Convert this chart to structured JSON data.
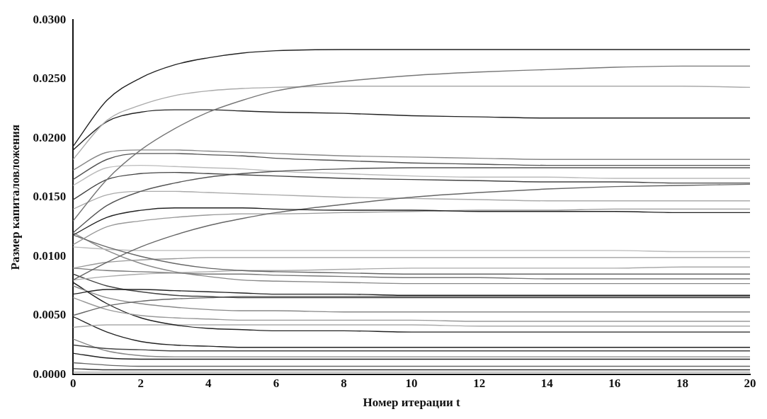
{
  "chart_data": {
    "type": "line",
    "xlabel": "Номер итерации t",
    "ylabel": "Размер капиталовложения",
    "x": [
      0,
      1,
      2,
      3,
      4,
      5,
      6,
      8,
      10,
      12,
      14,
      16,
      18,
      20
    ],
    "xlim": [
      0,
      20
    ],
    "xticks": [
      0,
      2,
      4,
      6,
      8,
      10,
      12,
      14,
      16,
      18,
      20
    ],
    "ylim": [
      0,
      0.03
    ],
    "yticks": [
      {
        "value": 0,
        "label": "0.0000"
      },
      {
        "value": 0.005,
        "label": "0.0050"
      },
      {
        "value": 0.01,
        "label": "0.0100"
      },
      {
        "value": 0.015,
        "label": "0.0150"
      },
      {
        "value": 0.02,
        "label": "0.0200"
      },
      {
        "value": 0.025,
        "label": "0.0250"
      },
      {
        "value": 0.03,
        "label": "0.0300"
      }
    ],
    "grid": false,
    "legend": false,
    "marker": "none",
    "line_style": "solid",
    "series": [
      {
        "color": "#222222",
        "values": [
          0.0193,
          0.0232,
          0.0251,
          0.0262,
          0.0268,
          0.0272,
          0.0274,
          0.0275,
          0.0275,
          0.0275,
          0.0275,
          0.0275,
          0.0275,
          0.0275
        ]
      },
      {
        "color": "#777777",
        "values": [
          0.013,
          0.0165,
          0.019,
          0.0208,
          0.0222,
          0.0232,
          0.024,
          0.0248,
          0.0253,
          0.0256,
          0.0258,
          0.026,
          0.0261,
          0.0261
        ]
      },
      {
        "color": "#aaaaaa",
        "values": [
          0.0182,
          0.0215,
          0.0228,
          0.0236,
          0.024,
          0.0242,
          0.0243,
          0.0244,
          0.0244,
          0.0244,
          0.0244,
          0.0244,
          0.0244,
          0.0243
        ]
      },
      {
        "color": "#222222",
        "values": [
          0.019,
          0.0214,
          0.0222,
          0.0224,
          0.0224,
          0.0223,
          0.0222,
          0.0221,
          0.0219,
          0.0218,
          0.0217,
          0.0217,
          0.0217,
          0.0217
        ]
      },
      {
        "color": "#888888",
        "values": [
          0.0173,
          0.0188,
          0.019,
          0.019,
          0.0189,
          0.0188,
          0.0187,
          0.0185,
          0.0184,
          0.0183,
          0.0182,
          0.0182,
          0.0182,
          0.0182
        ]
      },
      {
        "color": "#555555",
        "values": [
          0.0165,
          0.0182,
          0.0187,
          0.0187,
          0.0186,
          0.0185,
          0.0183,
          0.0181,
          0.0179,
          0.0178,
          0.0177,
          0.0177,
          0.0177,
          0.0177
        ]
      },
      {
        "color": "#444444",
        "values": [
          0.0148,
          0.0165,
          0.017,
          0.0171,
          0.017,
          0.0169,
          0.0168,
          0.0166,
          0.0165,
          0.0164,
          0.0163,
          0.0163,
          0.0162,
          0.0162
        ]
      },
      {
        "color": "#555555",
        "values": [
          0.012,
          0.0143,
          0.0155,
          0.0162,
          0.0167,
          0.017,
          0.0172,
          0.0174,
          0.0175,
          0.0175,
          0.0175,
          0.0175,
          0.0175,
          0.0175
        ]
      },
      {
        "color": "#222222",
        "values": [
          0.0118,
          0.0133,
          0.0139,
          0.0141,
          0.0141,
          0.0141,
          0.014,
          0.0139,
          0.0139,
          0.0138,
          0.0138,
          0.0138,
          0.0137,
          0.0137
        ]
      },
      {
        "color": "#666666",
        "values": [
          0.008,
          0.0095,
          0.0108,
          0.0118,
          0.0126,
          0.0132,
          0.0137,
          0.0144,
          0.015,
          0.0154,
          0.0157,
          0.0159,
          0.016,
          0.0161
        ]
      },
      {
        "color": "#bbbbbb",
        "values": [
          0.016,
          0.0175,
          0.0177,
          0.0176,
          0.0175,
          0.0174,
          0.0172,
          0.017,
          0.0168,
          0.0167,
          0.0167,
          0.0166,
          0.0166,
          0.0166
        ]
      },
      {
        "color": "#999999",
        "values": [
          0.011,
          0.0125,
          0.013,
          0.0133,
          0.0135,
          0.0136,
          0.0136,
          0.0137,
          0.0138,
          0.0139,
          0.0139,
          0.014,
          0.014,
          0.014
        ]
      },
      {
        "color": "#aaaaaa",
        "values": [
          0.014,
          0.0152,
          0.0155,
          0.0155,
          0.0154,
          0.0153,
          0.0152,
          0.015,
          0.0149,
          0.0148,
          0.0147,
          0.0147,
          0.0147,
          0.0147
        ]
      },
      {
        "color": "#666666",
        "values": [
          0.0118,
          0.0108,
          0.01,
          0.0094,
          0.009,
          0.0088,
          0.0087,
          0.0086,
          0.0085,
          0.0085,
          0.0085,
          0.0085,
          0.0085,
          0.0085
        ]
      },
      {
        "color": "#bbbbbb",
        "values": [
          0.0108,
          0.0106,
          0.0105,
          0.0105,
          0.0105,
          0.0105,
          0.0105,
          0.0105,
          0.0105,
          0.0105,
          0.0105,
          0.0105,
          0.0104,
          0.0104
        ]
      },
      {
        "color": "#999999",
        "values": [
          0.009,
          0.0095,
          0.0097,
          0.0098,
          0.0099,
          0.0099,
          0.0099,
          0.0099,
          0.0099,
          0.0099,
          0.0099,
          0.0099,
          0.0099,
          0.0099
        ]
      },
      {
        "color": "#777777",
        "values": [
          0.009,
          0.0088,
          0.0087,
          0.0086,
          0.0085,
          0.0085,
          0.0084,
          0.0083,
          0.0082,
          0.0082,
          0.0081,
          0.0081,
          0.0081,
          0.0081
        ]
      },
      {
        "color": "#aaaaaa",
        "values": [
          0.008,
          0.0083,
          0.0085,
          0.0086,
          0.0087,
          0.0088,
          0.0088,
          0.0089,
          0.009,
          0.009,
          0.009,
          0.009,
          0.0091,
          0.0091
        ]
      },
      {
        "color": "#888888",
        "values": [
          0.012,
          0.0105,
          0.0094,
          0.0087,
          0.0083,
          0.008,
          0.0079,
          0.0078,
          0.0077,
          0.0077,
          0.0077,
          0.0077,
          0.0077,
          0.0077
        ]
      },
      {
        "color": "#222222",
        "values": [
          0.0068,
          0.0072,
          0.0072,
          0.0071,
          0.007,
          0.0069,
          0.0068,
          0.0068,
          0.0067,
          0.0067,
          0.0067,
          0.0067,
          0.0067,
          0.0067
        ]
      },
      {
        "color": "#444444",
        "values": [
          0.0085,
          0.0075,
          0.007,
          0.0067,
          0.0066,
          0.0065,
          0.0065,
          0.0065,
          0.0065,
          0.0065,
          0.0065,
          0.0065,
          0.0065,
          0.0065
        ]
      },
      {
        "color": "#666666",
        "values": [
          0.005,
          0.0058,
          0.0062,
          0.0064,
          0.0065,
          0.0066,
          0.0066,
          0.0066,
          0.0066,
          0.0066,
          0.0066,
          0.0066,
          0.0066,
          0.0066
        ]
      },
      {
        "color": "#888888",
        "values": [
          0.0075,
          0.0065,
          0.006,
          0.0057,
          0.0055,
          0.0054,
          0.0054,
          0.0053,
          0.0053,
          0.0053,
          0.0053,
          0.0053,
          0.0053,
          0.0053
        ]
      },
      {
        "color": "#999999",
        "values": [
          0.0065,
          0.0055,
          0.005,
          0.0048,
          0.0047,
          0.0046,
          0.0046,
          0.0046,
          0.0046,
          0.0045,
          0.0045,
          0.0045,
          0.0045,
          0.0045
        ]
      },
      {
        "color": "#222222",
        "values": [
          0.0078,
          0.006,
          0.0048,
          0.0042,
          0.0039,
          0.0038,
          0.0037,
          0.0037,
          0.0036,
          0.0036,
          0.0036,
          0.0036,
          0.0036,
          0.0036
        ]
      },
      {
        "color": "#aaaaaa",
        "values": [
          0.004,
          0.0042,
          0.0042,
          0.0042,
          0.0042,
          0.0042,
          0.0042,
          0.0042,
          0.0042,
          0.0041,
          0.0041,
          0.0041,
          0.0041,
          0.0041
        ]
      },
      {
        "color": "#222222",
        "values": [
          0.0049,
          0.0036,
          0.0028,
          0.0025,
          0.0024,
          0.0023,
          0.0023,
          0.0023,
          0.0023,
          0.0023,
          0.0023,
          0.0023,
          0.0023,
          0.0023
        ]
      },
      {
        "color": "#444444",
        "values": [
          0.0025,
          0.0022,
          0.0021,
          0.002,
          0.002,
          0.002,
          0.002,
          0.002,
          0.002,
          0.002,
          0.002,
          0.002,
          0.002,
          0.002
        ]
      },
      {
        "color": "#888888",
        "values": [
          0.003,
          0.002,
          0.0016,
          0.0015,
          0.0015,
          0.0015,
          0.0015,
          0.0015,
          0.0015,
          0.0015,
          0.0015,
          0.0015,
          0.0015,
          0.0015
        ]
      },
      {
        "color": "#222222",
        "values": [
          0.0018,
          0.0014,
          0.0013,
          0.0013,
          0.0013,
          0.0013,
          0.0013,
          0.0013,
          0.0013,
          0.0013,
          0.0013,
          0.0013,
          0.0013,
          0.0013
        ]
      },
      {
        "color": "#666666",
        "values": [
          0.001,
          0.0008,
          0.0007,
          0.0007,
          0.0007,
          0.0007,
          0.0007,
          0.0007,
          0.0007,
          0.0007,
          0.0007,
          0.0007,
          0.0007,
          0.0007
        ]
      },
      {
        "color": "#333333",
        "values": [
          0.0005,
          0.0004,
          0.0004,
          0.0004,
          0.0004,
          0.0004,
          0.0004,
          0.0004,
          0.0004,
          0.0004,
          0.0004,
          0.0004,
          0.0004,
          0.0004
        ]
      },
      {
        "color": "#999999",
        "values": [
          0.0002,
          0.0002,
          0.0002,
          0.0002,
          0.0002,
          0.0002,
          0.0002,
          0.0002,
          0.0002,
          0.0002,
          0.0002,
          0.0002,
          0.0002,
          0.0002
        ]
      }
    ]
  }
}
